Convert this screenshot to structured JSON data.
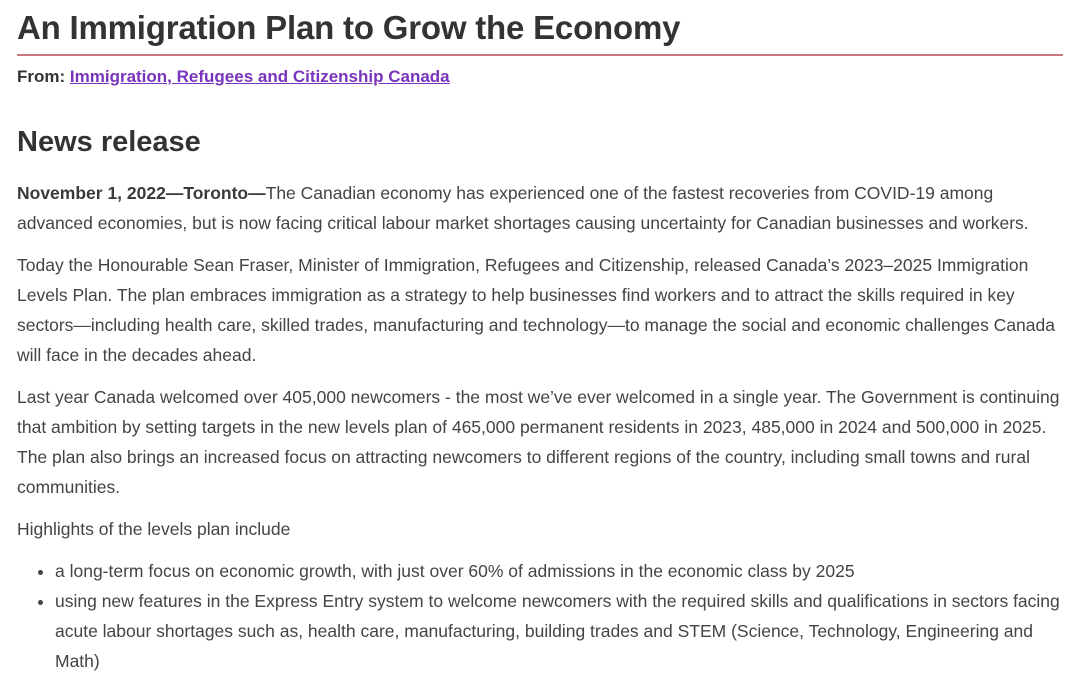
{
  "colors": {
    "heading_text": "#333333",
    "body_text": "#444444",
    "link_purple": "#7834bc",
    "title_rule_rose": "#c5797c",
    "background": "#ffffff"
  },
  "article": {
    "title": "An Immigration Plan to Grow the Economy",
    "from": {
      "label": "From:",
      "link_text": "Immigration, Refugees and Citizenship Canada"
    },
    "section_heading": "News release",
    "dateline": "November 1, 2022—Toronto—",
    "paragraphs": {
      "p1": "The Canadian economy has experienced one of the fastest recoveries from COVID-19 among advanced economies, but is now facing critical labour market shortages causing uncertainty for Canadian businesses and workers.",
      "p2": "Today the Honourable Sean Fraser, Minister of Immigration, Refugees and Citizenship, released Canada’s 2023–2025 Immigration Levels Plan. The plan embraces immigration as a strategy to help businesses find workers and to attract the skills required in key sectors—including health care, skilled trades, manufacturing and technology—to manage the social and economic challenges Canada will face in the decades ahead.",
      "p3": "Last year Canada welcomed over 405,000 newcomers - the most we’ve ever welcomed in a single year. The Government is continuing that ambition by setting targets in the new levels plan of 465,000 permanent residents in 2023, 485,000 in 2024 and 500,000 in 2025. The plan also brings an increased focus on attracting newcomers to different regions of the country, including small towns and rural communities.",
      "p4": "Highlights of the levels plan include"
    },
    "highlights": [
      "a long-term focus on economic growth, with just over 60% of admissions in the economic class by 2025",
      "using new features in the Express Entry system to welcome newcomers with the required skills and qualifications in sectors facing acute labour shortages such as, health care, manufacturing, building trades and STEM (Science, Technology, Engineering and Math)"
    ]
  }
}
